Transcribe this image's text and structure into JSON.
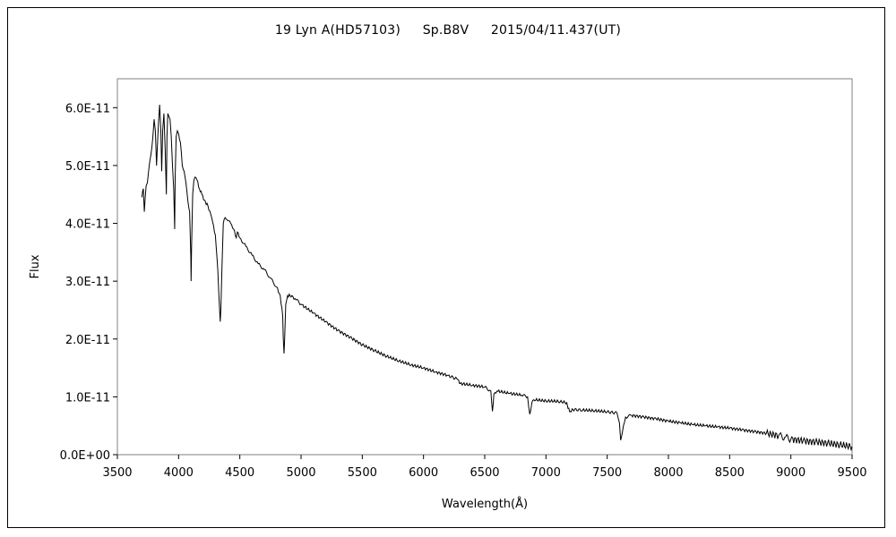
{
  "chart_data": {
    "type": "line",
    "title_parts": [
      "19 Lyn A(HD57103)",
      "Sp.B8V",
      "2015/04/11.437(UT)"
    ],
    "xlabel": "Wavelength(Å)",
    "ylabel": "Flux",
    "xlim": [
      3500,
      9500
    ],
    "ylim": [
      0,
      6.5e-11
    ],
    "x_ticks": [
      3500,
      4000,
      4500,
      5000,
      5500,
      6000,
      6500,
      7000,
      7500,
      8000,
      8500,
      9000,
      9500
    ],
    "x_tick_labels": [
      "3500",
      "4000",
      "4500",
      "5000",
      "5500",
      "6000",
      "6500",
      "7000",
      "7500",
      "8000",
      "8500",
      "9000",
      "9500"
    ],
    "y_ticks": [
      0,
      1e-11,
      2e-11,
      3e-11,
      4e-11,
      5e-11,
      6e-11
    ],
    "y_tick_labels": [
      "0.0E+00",
      "1.0E-11",
      "2.0E-11",
      "3.0E-11",
      "4.0E-11",
      "5.0E-11",
      "6.0E-11"
    ],
    "grid": false,
    "legend": "none",
    "series": [
      {
        "color": "#000000",
        "x": [
          3700,
          3712,
          3720,
          3735,
          3745,
          3760,
          3775,
          3790,
          3800,
          3810,
          3820,
          3835,
          3845,
          3855,
          3862,
          3870,
          3880,
          3890,
          3900,
          3905,
          3912,
          3920,
          3930,
          3940,
          3950,
          3960,
          3968,
          3972,
          3980,
          3990,
          4000,
          4015,
          4030,
          4045,
          4060,
          4075,
          4090,
          4100,
          4102,
          4106,
          4115,
          4125,
          4135,
          4150,
          4170,
          4190,
          4210,
          4240,
          4270,
          4300,
          4320,
          4335,
          4340,
          4345,
          4355,
          4365,
          4380,
          4400,
          4425,
          4450,
          4471,
          4480,
          4500,
          4550,
          4600,
          4650,
          4700,
          4750,
          4800,
          4830,
          4850,
          4855,
          4861,
          4866,
          4875,
          4890,
          4910,
          4950,
          5000,
          5100,
          5200,
          5300,
          5400,
          5500,
          5600,
          5700,
          5800,
          5900,
          6000,
          6100,
          6200,
          6280,
          6300,
          6400,
          6500,
          6550,
          6563,
          6575,
          6600,
          6700,
          6800,
          6850,
          6868,
          6885,
          6900,
          7000,
          7100,
          7170,
          7180,
          7200,
          7220,
          7300,
          7400,
          7500,
          7580,
          7600,
          7610,
          7625,
          7650,
          7700,
          7800,
          7900,
          8000,
          8100,
          8200,
          8300,
          8400,
          8500,
          8600,
          8700,
          8800,
          8900,
          8950,
          9000,
          9100,
          9200,
          9300,
          9400,
          9500
        ],
        "y": [
          4.45e-11,
          4.6e-11,
          4.2e-11,
          4.65e-11,
          4.7e-11,
          5e-11,
          5.2e-11,
          5.5e-11,
          5.8e-11,
          5.6e-11,
          5e-11,
          5.7e-11,
          6.05e-11,
          5.6e-11,
          4.9e-11,
          5.6e-11,
          5.9e-11,
          5.3e-11,
          4.5e-11,
          5.5e-11,
          5.9e-11,
          5.85e-11,
          5.8e-11,
          5.5e-11,
          5e-11,
          4.6e-11,
          3.9e-11,
          4.8e-11,
          5.5e-11,
          5.6e-11,
          5.55e-11,
          5.4e-11,
          5e-11,
          4.9e-11,
          4.7e-11,
          4.4e-11,
          4.2e-11,
          3.4e-11,
          3e-11,
          3.6e-11,
          4.5e-11,
          4.75e-11,
          4.8e-11,
          4.75e-11,
          4.6e-11,
          4.5e-11,
          4.4e-11,
          4.3e-11,
          4.1e-11,
          3.8e-11,
          3.2e-11,
          2.5e-11,
          2.3e-11,
          2.5e-11,
          3.3e-11,
          4e-11,
          4.1e-11,
          4.05e-11,
          4e-11,
          3.9e-11,
          3.75e-11,
          3.85e-11,
          3.75e-11,
          3.6e-11,
          3.45e-11,
          3.3e-11,
          3.2e-11,
          3.05e-11,
          2.9e-11,
          2.75e-11,
          2.4e-11,
          2e-11,
          1.75e-11,
          2e-11,
          2.6e-11,
          2.75e-11,
          2.75e-11,
          2.7e-11,
          2.6e-11,
          2.45e-11,
          2.3e-11,
          2.15e-11,
          2.03e-11,
          1.9e-11,
          1.8e-11,
          1.7e-11,
          1.62e-11,
          1.55e-11,
          1.5e-11,
          1.43e-11,
          1.37e-11,
          1.3e-11,
          1.23e-11,
          1.2e-11,
          1.17e-11,
          1.1e-11,
          7.5e-12,
          1.05e-11,
          1.1e-11,
          1.06e-11,
          1.03e-11,
          1e-11,
          7e-12,
          9e-12,
          9.5e-12,
          9.3e-12,
          9.2e-12,
          9e-12,
          8e-12,
          7.5e-12,
          7.8e-12,
          7.7e-12,
          7.6e-12,
          7.4e-12,
          7.2e-12,
          5.5e-12,
          2.5e-12,
          4e-12,
          6.5e-12,
          6.8e-12,
          6.5e-12,
          6.2e-12,
          5.8e-12,
          5.5e-12,
          5.2e-12,
          5e-12,
          4.8e-12,
          4.6e-12,
          4.3e-12,
          4e-12,
          3.7e-12,
          3.3e-12,
          3e-12,
          2.7e-12,
          2.4e-12,
          2.2e-12,
          2e-12,
          1.7e-12,
          1.4e-12
        ]
      }
    ]
  }
}
